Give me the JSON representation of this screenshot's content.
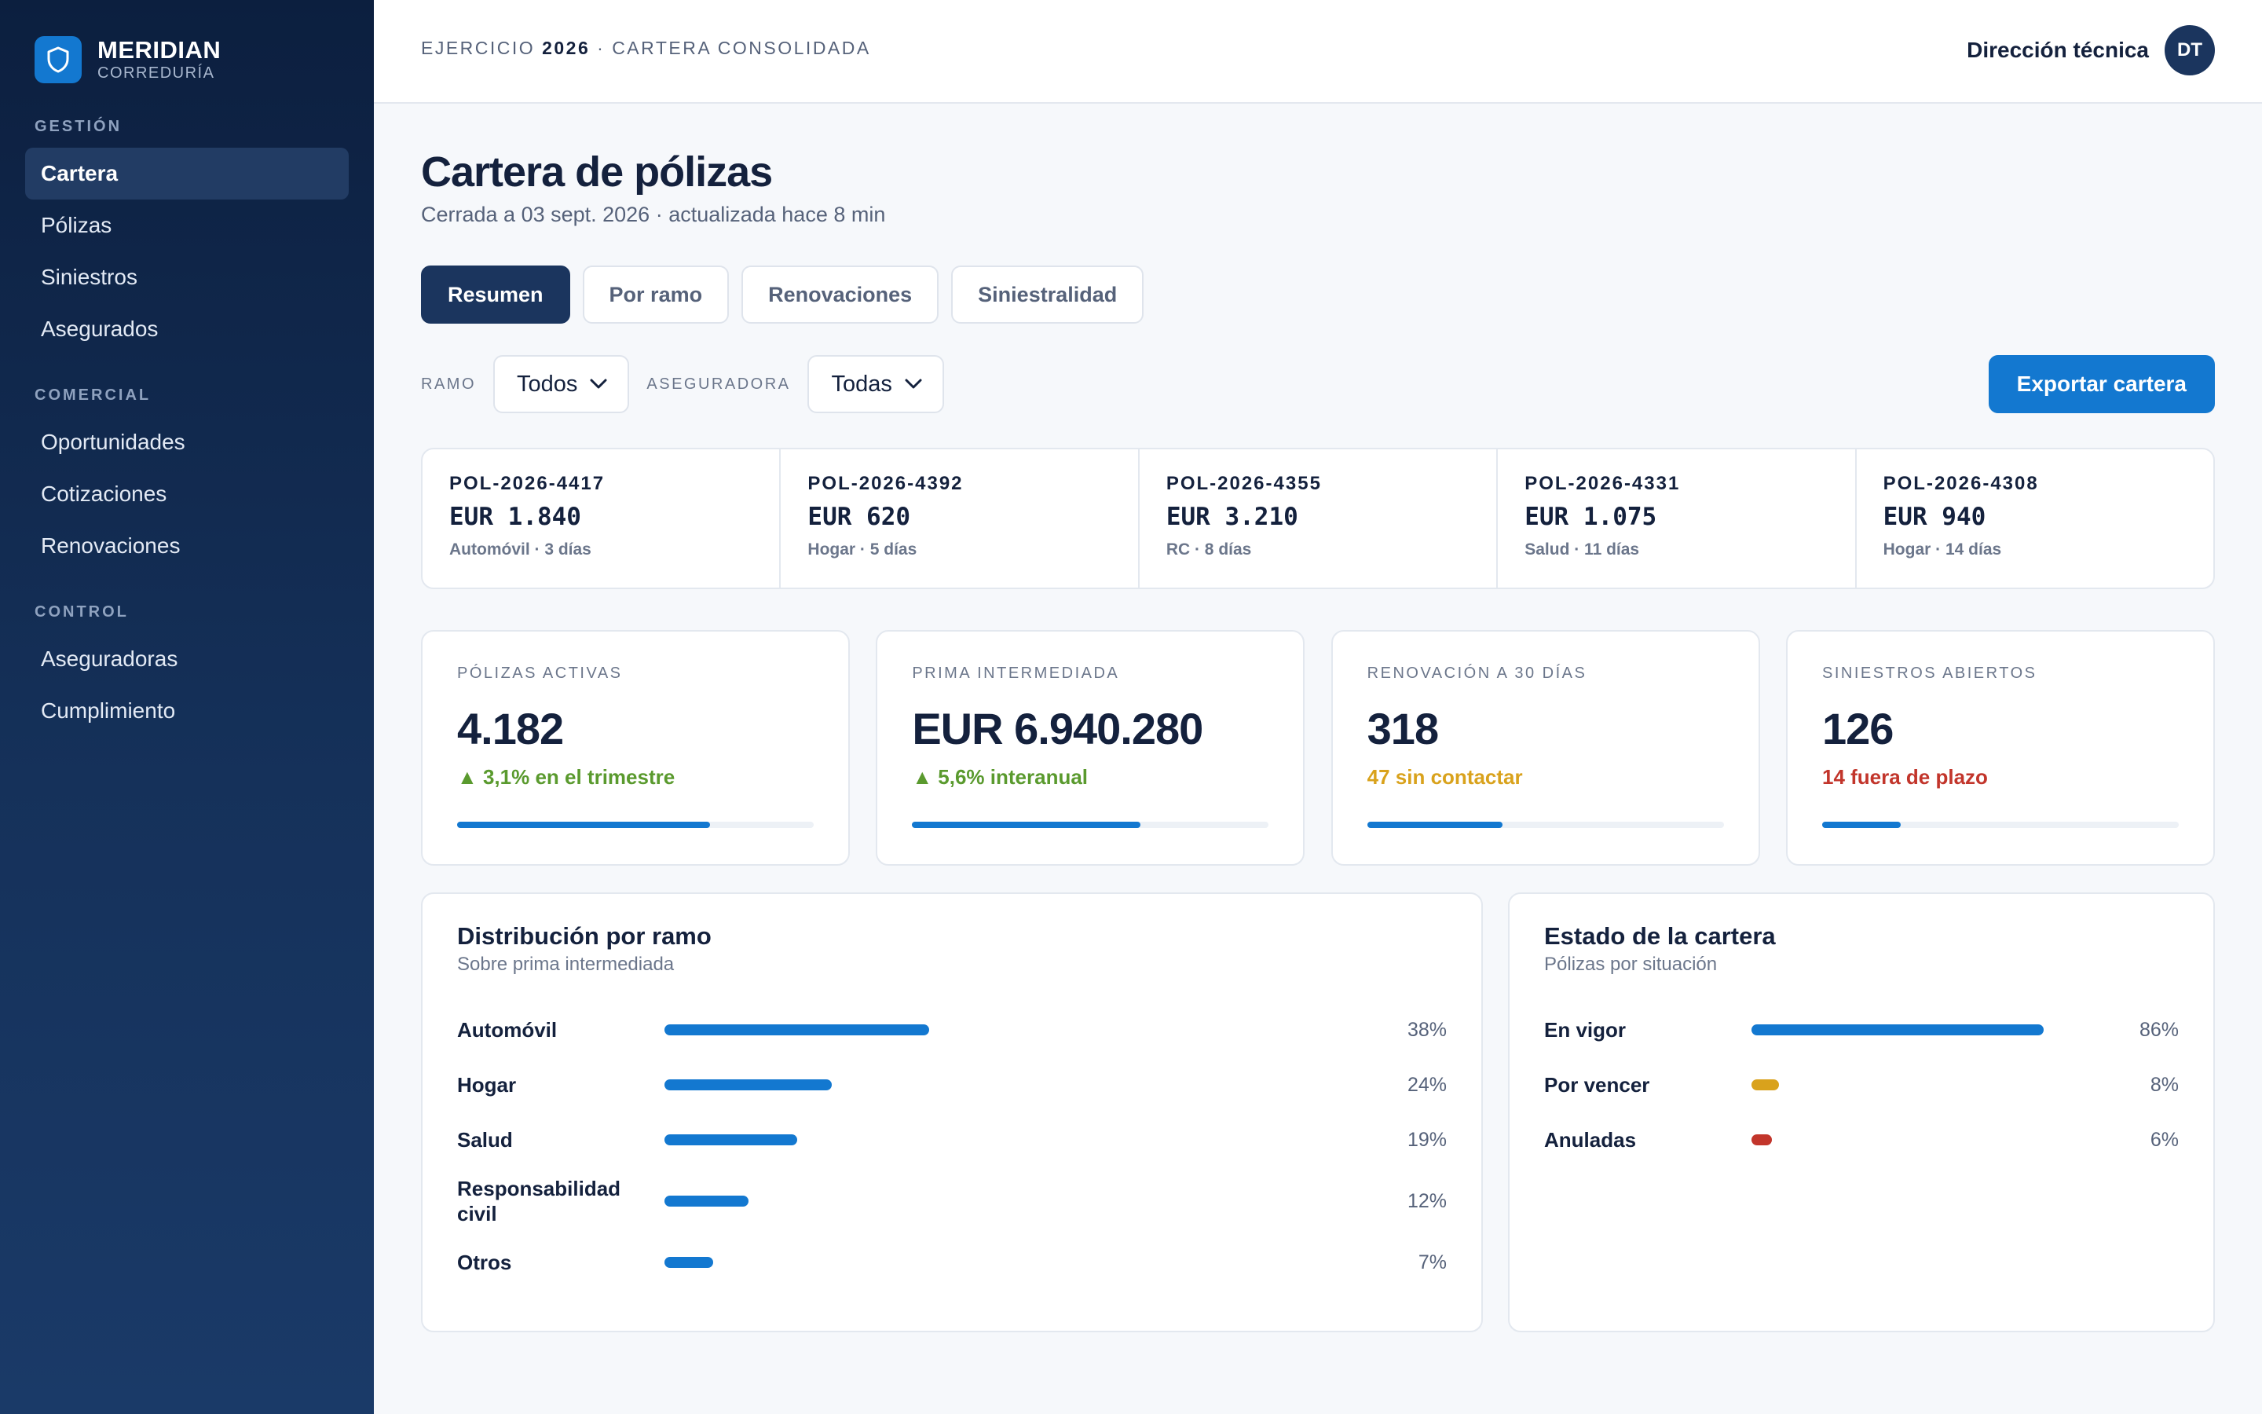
{
  "brand": {
    "name": "MERIDIAN",
    "subtitle": "CORREDURÍA",
    "logo_icon": "shield-icon"
  },
  "sidebar": {
    "sections": [
      {
        "label": "GESTIÓN",
        "items": [
          {
            "label": "Cartera",
            "active": true
          },
          {
            "label": "Pólizas"
          },
          {
            "label": "Siniestros"
          },
          {
            "label": "Asegurados"
          }
        ]
      },
      {
        "label": "COMERCIAL",
        "items": [
          {
            "label": "Oportunidades"
          },
          {
            "label": "Cotizaciones"
          },
          {
            "label": "Renovaciones"
          }
        ]
      },
      {
        "label": "CONTROL",
        "items": [
          {
            "label": "Aseguradoras"
          },
          {
            "label": "Cumplimiento"
          }
        ]
      }
    ]
  },
  "header": {
    "crumb_prefix": "EJERCICIO ",
    "crumb_year": "2026",
    "crumb_suffix": " · CARTERA CONSOLIDADA",
    "user_name": "Dirección técnica",
    "user_initials": "DT"
  },
  "page": {
    "title": "Cartera de pólizas",
    "subtitle": "Cerrada a 03 sept. 2026 · actualizada hace 8 min"
  },
  "tabs": [
    {
      "label": "Resumen",
      "active": true
    },
    {
      "label": "Por ramo"
    },
    {
      "label": "Renovaciones"
    },
    {
      "label": "Siniestralidad"
    }
  ],
  "filters": {
    "ramo_label": "RAMO",
    "ramo_value": "Todos",
    "aseguradora_label": "ASEGURADORA",
    "aseguradora_value": "Todas",
    "export_label": "Exportar cartera"
  },
  "policies": [
    {
      "id": "POL-2026-4417",
      "amount": "EUR 1.840",
      "meta": "Automóvil · 3 días"
    },
    {
      "id": "POL-2026-4392",
      "amount": "EUR 620",
      "meta": "Hogar · 5 días"
    },
    {
      "id": "POL-2026-4355",
      "amount": "EUR 3.210",
      "meta": "RC · 8 días"
    },
    {
      "id": "POL-2026-4331",
      "amount": "EUR 1.075",
      "meta": "Salud · 11 días"
    },
    {
      "id": "POL-2026-4308",
      "amount": "EUR 940",
      "meta": "Hogar · 14 días"
    }
  ],
  "kpis": [
    {
      "label": "PÓLIZAS ACTIVAS",
      "value": "4.182",
      "trend": "▲ 3,1% en el trimestre",
      "trend_color": "#5a9a2e",
      "progress": 0.71
    },
    {
      "label": "PRIMA INTERMEDIADA",
      "value": "EUR 6.940.280",
      "trend": "▲ 5,6% interanual",
      "trend_color": "#5a9a2e",
      "progress": 0.64
    },
    {
      "label": "RENOVACIÓN A 30 DÍAS",
      "value": "318",
      "trend": "47 sin contactar",
      "trend_color": "#d9a21c",
      "progress": 0.38
    },
    {
      "label": "SINIESTROS ABIERTOS",
      "value": "126",
      "trend": "14 fuera de plazo",
      "trend_color": "#c2352b",
      "progress": 0.22
    }
  ],
  "distribution": {
    "title": "Distribución por ramo",
    "subtitle": "Sobre prima intermediada",
    "rows": [
      {
        "label": "Automóvil",
        "pct_label": "38%",
        "value": 38,
        "color": "#1378d0"
      },
      {
        "label": "Hogar",
        "pct_label": "24%",
        "value": 24,
        "color": "#1378d0"
      },
      {
        "label": "Salud",
        "pct_label": "19%",
        "value": 19,
        "color": "#1378d0"
      },
      {
        "label": "Responsabilidad civil",
        "pct_label": "12%",
        "value": 12,
        "color": "#1378d0"
      },
      {
        "label": "Otros",
        "pct_label": "7%",
        "value": 7,
        "color": "#1378d0"
      }
    ]
  },
  "status": {
    "title": "Estado de la cartera",
    "subtitle": "Pólizas por situación",
    "rows": [
      {
        "label": "En vigor",
        "pct_label": "86%",
        "value": 86,
        "color": "#1378d0"
      },
      {
        "label": "Por vencer",
        "pct_label": "8%",
        "value": 8,
        "color": "#d9a21c"
      },
      {
        "label": "Anuladas",
        "pct_label": "6%",
        "value": 6,
        "color": "#c2352b"
      }
    ]
  }
}
